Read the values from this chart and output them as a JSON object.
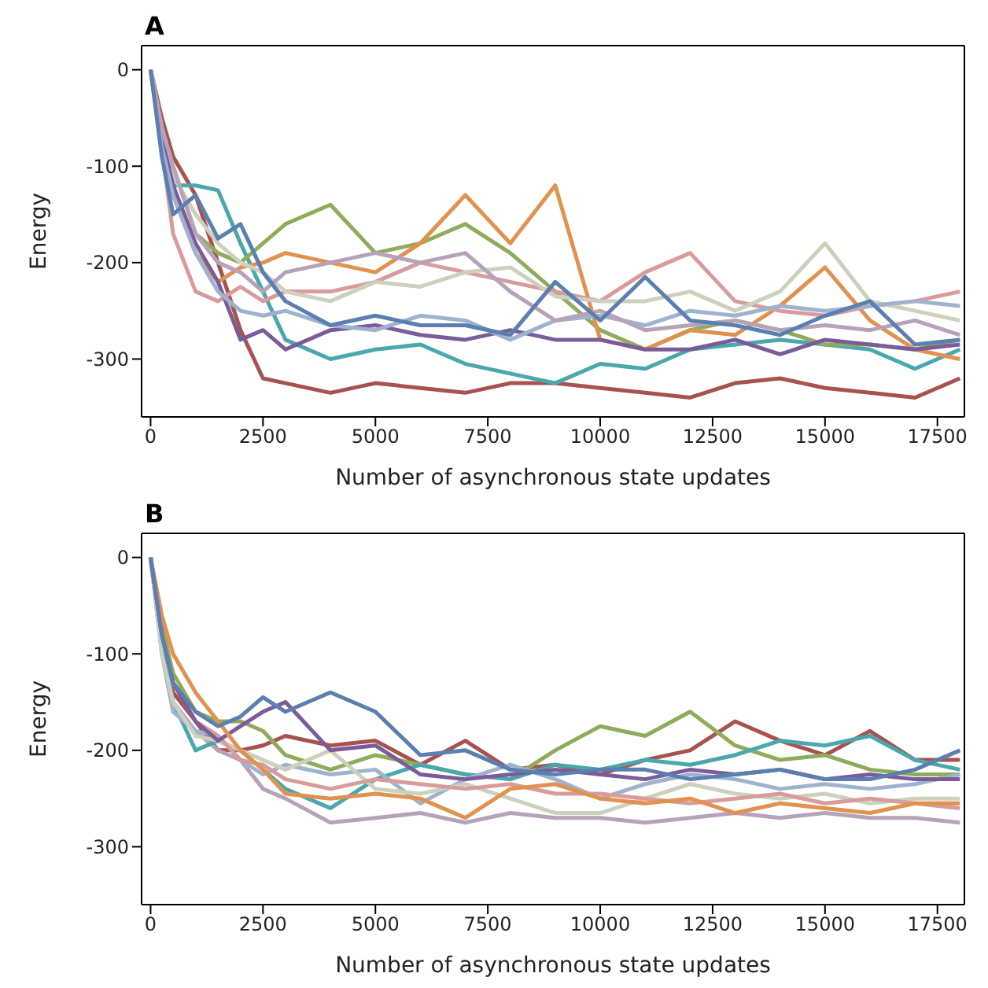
{
  "chart_data": [
    {
      "type": "line",
      "title": "A",
      "xlabel": "Number of asynchronous state updates",
      "ylabel": "Energy",
      "x": [
        0,
        250,
        500,
        1000,
        1500,
        2000,
        2500,
        3000,
        4000,
        5000,
        6000,
        7000,
        8000,
        9000,
        10000,
        11000,
        12000,
        13000,
        14000,
        15000,
        16000,
        17000,
        18000
      ],
      "xlim": [
        -200,
        18100
      ],
      "ylim": [
        -360,
        25
      ],
      "xticks": [
        0,
        2500,
        5000,
        7500,
        10000,
        12500,
        15000,
        17500
      ],
      "yticks": [
        -300,
        -200,
        -100,
        0
      ],
      "grid": false,
      "legend": false,
      "marker": "none",
      "line_style": "solid",
      "series": [
        {
          "color": "#a8524f",
          "values": [
            0,
            -50,
            -90,
            -130,
            -200,
            -270,
            -320,
            -325,
            -335,
            -325,
            -330,
            -335,
            -325,
            -325,
            -330,
            -335,
            -340,
            -325,
            -320,
            -330,
            -335,
            -340,
            -320
          ]
        },
        {
          "color": "#4aa7ad",
          "values": [
            0,
            -80,
            -120,
            -120,
            -125,
            -180,
            -230,
            -280,
            -300,
            -290,
            -285,
            -305,
            -315,
            -325,
            -305,
            -310,
            -290,
            -285,
            -280,
            -285,
            -290,
            -310,
            -290
          ]
        },
        {
          "color": "#8fac5a",
          "values": [
            0,
            -60,
            -100,
            -170,
            -190,
            -200,
            -180,
            -160,
            -140,
            -190,
            -180,
            -160,
            -190,
            -230,
            -270,
            -290,
            -270,
            -260,
            -270,
            -285,
            -285,
            -290,
            -280
          ]
        },
        {
          "color": "#e1924f",
          "values": [
            0,
            -70,
            -130,
            -190,
            -220,
            -205,
            -200,
            -190,
            -200,
            -210,
            -180,
            -130,
            -180,
            -120,
            -280,
            -290,
            -270,
            -275,
            -245,
            -205,
            -260,
            -290,
            -300
          ]
        },
        {
          "color": "#d99b9b",
          "values": [
            0,
            -80,
            -170,
            -230,
            -240,
            -225,
            -240,
            -230,
            -230,
            -220,
            -200,
            -210,
            -220,
            -230,
            -240,
            -210,
            -190,
            -240,
            -250,
            -255,
            -245,
            -240,
            -230
          ]
        },
        {
          "color": "#cbd1bd",
          "values": [
            0,
            -60,
            -110,
            -150,
            -180,
            -200,
            -210,
            -230,
            -240,
            -220,
            -225,
            -210,
            -205,
            -235,
            -240,
            -240,
            -230,
            -250,
            -230,
            -180,
            -240,
            -250,
            -260
          ]
        },
        {
          "color": "#7b5c9b",
          "values": [
            0,
            -70,
            -120,
            -180,
            -220,
            -280,
            -270,
            -290,
            -270,
            -265,
            -275,
            -280,
            -270,
            -280,
            -280,
            -290,
            -290,
            -280,
            -295,
            -280,
            -285,
            -290,
            -285
          ]
        },
        {
          "color": "#9fb3d0",
          "values": [
            0,
            -80,
            -130,
            -190,
            -230,
            -250,
            -255,
            -250,
            -265,
            -270,
            -255,
            -260,
            -280,
            -260,
            -255,
            -265,
            -250,
            -255,
            -245,
            -250,
            -245,
            -240,
            -245
          ]
        },
        {
          "color": "#b7a3b9",
          "values": [
            0,
            -60,
            -100,
            -170,
            -200,
            -210,
            -230,
            -210,
            -200,
            -190,
            -200,
            -190,
            -230,
            -260,
            -250,
            -270,
            -265,
            -260,
            -270,
            -265,
            -270,
            -260,
            -275
          ]
        },
        {
          "color": "#5a7fb0",
          "values": [
            0,
            -90,
            -150,
            -130,
            -175,
            -160,
            -210,
            -240,
            -265,
            -255,
            -265,
            -265,
            -275,
            -220,
            -260,
            -215,
            -260,
            -265,
            -275,
            -255,
            -240,
            -285,
            -280
          ]
        }
      ]
    },
    {
      "type": "line",
      "title": "B",
      "xlabel": "Number of asynchronous state updates",
      "ylabel": "Energy",
      "x": [
        0,
        250,
        500,
        1000,
        1500,
        2000,
        2500,
        3000,
        4000,
        5000,
        6000,
        7000,
        8000,
        9000,
        10000,
        11000,
        12000,
        13000,
        14000,
        15000,
        16000,
        17000,
        18000
      ],
      "xlim": [
        -200,
        18100
      ],
      "ylim": [
        -360,
        25
      ],
      "xticks": [
        0,
        2500,
        5000,
        7500,
        10000,
        12500,
        15000,
        17500
      ],
      "yticks": [
        -300,
        -200,
        -100,
        0
      ],
      "grid": false,
      "legend": false,
      "marker": "none",
      "line_style": "solid",
      "series": [
        {
          "color": "#a8524f",
          "values": [
            0,
            -90,
            -140,
            -170,
            -200,
            -200,
            -195,
            -185,
            -195,
            -190,
            -215,
            -190,
            -220,
            -215,
            -225,
            -210,
            -200,
            -170,
            -190,
            -205,
            -180,
            -210,
            -210
          ]
        },
        {
          "color": "#8fac5a",
          "values": [
            0,
            -70,
            -120,
            -160,
            -170,
            -170,
            -180,
            -205,
            -220,
            -205,
            -215,
            -225,
            -230,
            -200,
            -175,
            -185,
            -160,
            -195,
            -210,
            -205,
            -220,
            -225,
            -225
          ]
        },
        {
          "color": "#b7a3b9",
          "values": [
            0,
            -90,
            -150,
            -180,
            -200,
            -210,
            -240,
            -250,
            -275,
            -270,
            -265,
            -275,
            -265,
            -270,
            -270,
            -275,
            -270,
            -265,
            -270,
            -265,
            -270,
            -270,
            -275
          ]
        },
        {
          "color": "#4aa7ad",
          "values": [
            0,
            -90,
            -150,
            -200,
            -190,
            -200,
            -220,
            -240,
            -260,
            -230,
            -215,
            -225,
            -230,
            -215,
            -220,
            -210,
            -215,
            -205,
            -190,
            -195,
            -185,
            -210,
            -220
          ]
        },
        {
          "color": "#9fb3d0",
          "values": [
            0,
            -100,
            -160,
            -180,
            -185,
            -210,
            -225,
            -215,
            -225,
            -220,
            -255,
            -230,
            -215,
            -230,
            -250,
            -235,
            -225,
            -230,
            -240,
            -235,
            -240,
            -235,
            -225
          ]
        },
        {
          "color": "#cbd1bd",
          "values": [
            0,
            -100,
            -150,
            -185,
            -190,
            -200,
            -210,
            -220,
            -200,
            -240,
            -245,
            -235,
            -250,
            -265,
            -265,
            -250,
            -235,
            -245,
            -250,
            -245,
            -255,
            -250,
            -250
          ]
        },
        {
          "color": "#d99b9b",
          "values": [
            0,
            -80,
            -130,
            -170,
            -185,
            -210,
            -215,
            -230,
            -240,
            -230,
            -235,
            -240,
            -235,
            -245,
            -245,
            -250,
            -255,
            -250,
            -245,
            -255,
            -250,
            -255,
            -260
          ]
        },
        {
          "color": "#7b5c9b",
          "values": [
            0,
            -80,
            -130,
            -170,
            -190,
            -175,
            -160,
            -150,
            -200,
            -195,
            -225,
            -230,
            -225,
            -220,
            -225,
            -230,
            -220,
            -225,
            -220,
            -230,
            -225,
            -230,
            -230
          ]
        },
        {
          "color": "#e1924f",
          "values": [
            0,
            -60,
            -100,
            -140,
            -170,
            -200,
            -220,
            -245,
            -250,
            -245,
            -250,
            -270,
            -240,
            -235,
            -250,
            -255,
            -250,
            -265,
            -255,
            -260,
            -265,
            -255,
            -255
          ]
        },
        {
          "color": "#5a7fb0",
          "values": [
            0,
            -80,
            -130,
            -160,
            -175,
            -165,
            -145,
            -160,
            -140,
            -160,
            -205,
            -200,
            -220,
            -225,
            -220,
            -220,
            -230,
            -225,
            -220,
            -230,
            -230,
            -220,
            -200
          ]
        }
      ]
    }
  ]
}
